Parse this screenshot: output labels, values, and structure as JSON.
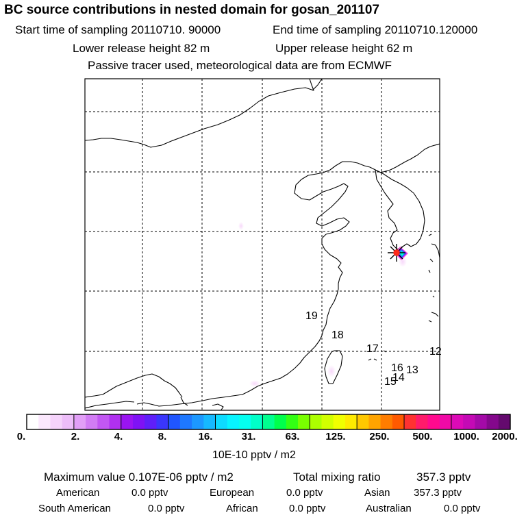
{
  "header": {
    "title": "BC  source contributions in nested domain for gosan_201107",
    "start_time": "Start time of sampling 20110710. 90000",
    "end_time": "End time of sampling 20110710.120000",
    "lower_release": "Lower release height   82 m",
    "upper_release": "Upper release height   62 m",
    "tracer_info": "Passive tracer used, meteorological data are from ECMWF"
  },
  "map": {
    "labels": [
      "19",
      "18",
      "17",
      "16",
      "15",
      "14",
      "13",
      "12"
    ],
    "receptor_marker": "star-marker",
    "colors": {
      "coast": "#000000",
      "grid": "#000000",
      "plume_light": "#f3c9f6",
      "plume_core": "#7a22ff"
    }
  },
  "colorbar": {
    "colors": [
      "#ffffff",
      "#fbe8fd",
      "#f5d3fb",
      "#edbdf9",
      "#e29ff7",
      "#d27cf4",
      "#c257f2",
      "#b030f0",
      "#9a14f2",
      "#7f12f5",
      "#5f1ff9",
      "#3a36fd",
      "#2056ff",
      "#1e78ff",
      "#1c98ff",
      "#16b9ff",
      "#0ddbff",
      "#07f4ff",
      "#04fff0",
      "#00ffc8",
      "#00ff90",
      "#00ff4c",
      "#33ff14",
      "#79ff00",
      "#adff00",
      "#d2ff00",
      "#f1ff00",
      "#ffea00",
      "#ffc800",
      "#ffa400",
      "#ff7d00",
      "#ff5a00",
      "#ff3232",
      "#ff1b6b",
      "#ff0a8e",
      "#f00aa6",
      "#dc0ab7",
      "#c40ab5",
      "#a40aa8",
      "#84088c",
      "#640a6e"
    ],
    "tick_labels": [
      "0.",
      "2.",
      "4.",
      "8.",
      "16.",
      "31.",
      "63.",
      "125.",
      "250.",
      "500.",
      "1000.",
      "2000."
    ],
    "units": "10E-10 pptv / m2"
  },
  "summary": {
    "max_value": "Maximum value  0.107E-06 pptv / m2",
    "total_label": "Total mixing ratio",
    "total_value": "357.3 pptv",
    "regions": [
      {
        "name": "American",
        "value": "0.0 pptv"
      },
      {
        "name": "European",
        "value": "0.0 pptv"
      },
      {
        "name": "Asian",
        "value": "357.3 pptv"
      },
      {
        "name": "South American",
        "value": "0.0 pptv"
      },
      {
        "name": "African",
        "value": "0.0 pptv"
      },
      {
        "name": "Australian",
        "value": "0.0 pptv"
      }
    ]
  }
}
